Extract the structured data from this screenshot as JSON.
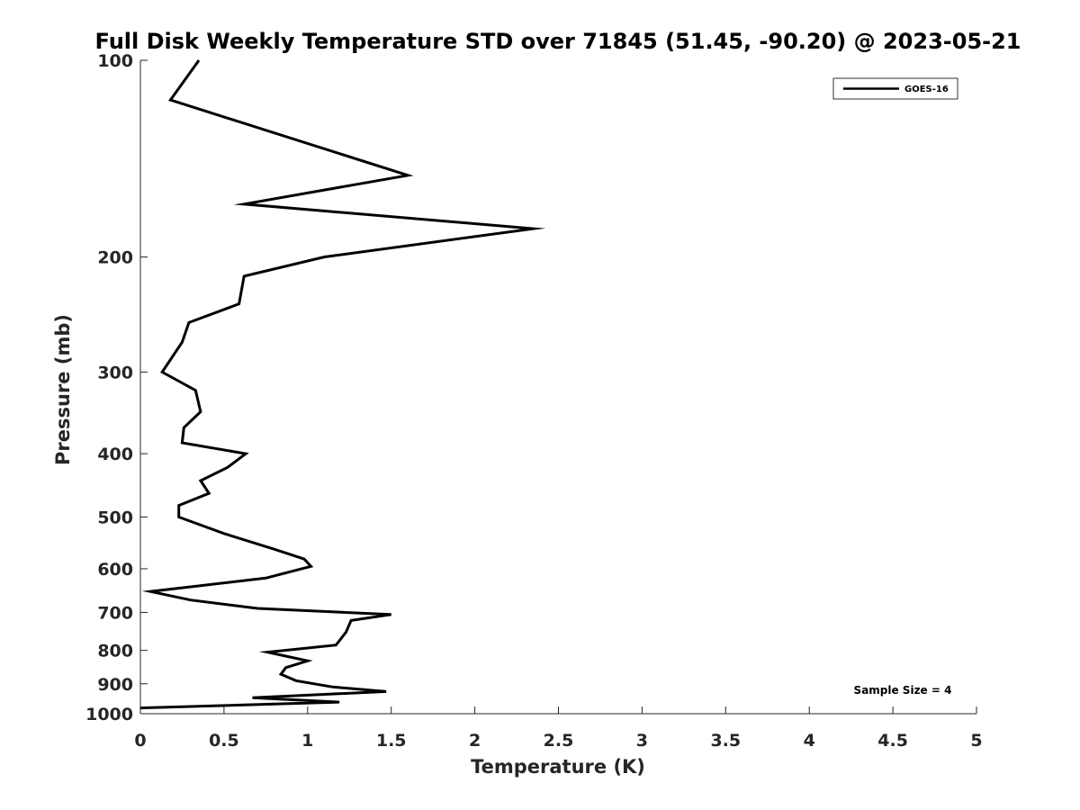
{
  "chart_data": {
    "type": "line",
    "title": "Full Disk Weekly Temperature STD over 71845 (51.45, -90.20) @ 2023-05-21",
    "xlabel": "Temperature (K)",
    "ylabel": "Pressure (mb)",
    "xlim": [
      0,
      5
    ],
    "ylim": [
      100,
      1000
    ],
    "y_scale": "log",
    "y_reversed": true,
    "grid": false,
    "legend_position": "top-right",
    "x_ticks": [
      "0",
      "0.5",
      "1",
      "1.5",
      "2",
      "2.5",
      "3",
      "3.5",
      "4",
      "4.5",
      "5"
    ],
    "y_ticks": [
      "100",
      "200",
      "300",
      "400",
      "500",
      "600",
      "700",
      "800",
      "900",
      "1000"
    ],
    "series": [
      {
        "name": "GOES-16",
        "color": "#000000",
        "points": [
          [
            0.35,
            100
          ],
          [
            0.18,
            115
          ],
          [
            1.6,
            150
          ],
          [
            0.62,
            166
          ],
          [
            2.35,
            181
          ],
          [
            1.1,
            200
          ],
          [
            0.62,
            214
          ],
          [
            0.59,
            236
          ],
          [
            0.29,
            252
          ],
          [
            0.25,
            270
          ],
          [
            0.13,
            300
          ],
          [
            0.33,
            320
          ],
          [
            0.36,
            345
          ],
          [
            0.26,
            365
          ],
          [
            0.25,
            385
          ],
          [
            0.63,
            400
          ],
          [
            0.52,
            420
          ],
          [
            0.36,
            440
          ],
          [
            0.41,
            460
          ],
          [
            0.23,
            480
          ],
          [
            0.23,
            500
          ],
          [
            0.5,
            530
          ],
          [
            0.8,
            560
          ],
          [
            0.98,
            580
          ],
          [
            1.02,
            595
          ],
          [
            0.75,
            620
          ],
          [
            0.06,
            650
          ],
          [
            0.3,
            670
          ],
          [
            0.7,
            690
          ],
          [
            1.5,
            705
          ],
          [
            1.26,
            720
          ],
          [
            1.23,
            750
          ],
          [
            1.17,
            785
          ],
          [
            0.76,
            805
          ],
          [
            1.0,
            830
          ],
          [
            0.87,
            850
          ],
          [
            0.84,
            870
          ],
          [
            0.93,
            890
          ],
          [
            1.15,
            910
          ],
          [
            1.47,
            925
          ],
          [
            0.67,
            945
          ],
          [
            1.19,
            960
          ],
          [
            0.0,
            980
          ]
        ]
      }
    ],
    "annotation": "Sample Size = 4"
  }
}
